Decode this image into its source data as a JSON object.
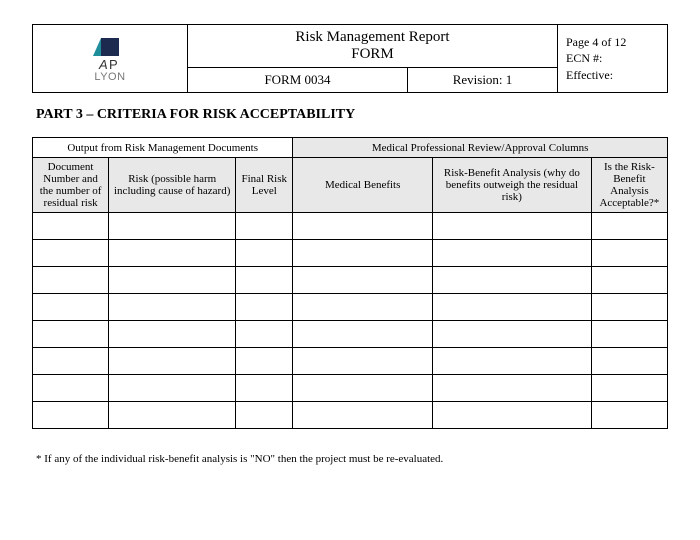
{
  "header": {
    "logo": {
      "brand_top": "AP",
      "brand_bottom": "LYON"
    },
    "title_line1": "Risk Management Report",
    "title_line2": "FORM",
    "form_id": "FORM 0034",
    "revision": "Revision: 1",
    "page": "Page  4 of 12",
    "ecn": "ECN #:",
    "effective": "Effective:"
  },
  "section_heading": "PART 3 – CRITERIA FOR RISK ACCEPTABILITY",
  "table": {
    "group_headers": {
      "left": "Output from Risk Management Documents",
      "right": "Medical Professional Review/Approval Columns"
    },
    "columns": [
      "Document Number and the number of residual risk",
      "Risk (possible harm including cause of hazard)",
      "Final Risk Level",
      "Medical Benefits",
      "Risk-Benefit Analysis (why do benefits outweigh the residual risk)",
      "Is the Risk-Benefit Analysis Acceptable?*"
    ],
    "col_widths_pct": [
      12,
      20,
      9,
      22,
      25,
      12
    ],
    "row_count": 8
  },
  "footnote": "* If any of the individual risk-benefit analysis is \"NO\" then the project must be re-evaluated.",
  "colors": {
    "border": "#000000",
    "shade": "#e8e8e8",
    "background": "#ffffff",
    "logo_teal": "#1f8e9b",
    "logo_navy": "#1b2a4e"
  }
}
